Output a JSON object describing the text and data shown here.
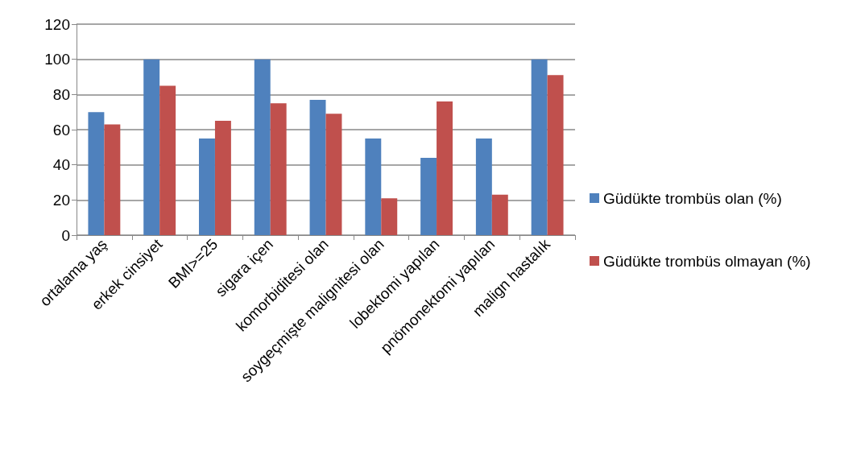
{
  "chart_data": {
    "type": "bar",
    "categories": [
      "ortalama yaş",
      "erkek cinsiyet",
      "BMI>=25",
      "sigara içen",
      "komorbiditesi olan",
      "soygeçmişte malignitesi olan",
      "lobektomi yapılan",
      "pnömonektomi yapılan",
      "malign hastalık"
    ],
    "series": [
      {
        "name": "Güdükte trombüs olan (%)",
        "color": "#4f81bd",
        "values": [
          70,
          100,
          55,
          100,
          77,
          55,
          44,
          55,
          100
        ]
      },
      {
        "name": "Güdükte trombüs olmayan (%)",
        "color": "#c0504d",
        "values": [
          63,
          85,
          65,
          75,
          69,
          21,
          76,
          23,
          91
        ]
      }
    ],
    "ylim": [
      0,
      120
    ],
    "yticks": [
      0,
      20,
      40,
      60,
      80,
      100,
      120
    ],
    "grid": "y",
    "legend": "right"
  }
}
